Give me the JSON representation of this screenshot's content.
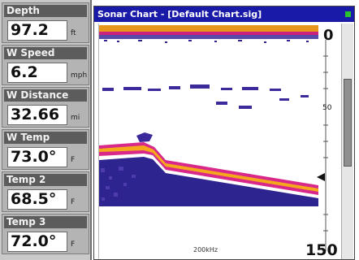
{
  "panel": {
    "boxes": [
      {
        "label": "Depth",
        "value": "97.2",
        "unit": "ft"
      },
      {
        "label": "W Speed",
        "value": "6.2",
        "unit": "mph"
      },
      {
        "label": "W Distance",
        "value": "32.66",
        "unit": "mi"
      },
      {
        "label": "W Temp",
        "value": "73.0°",
        "unit": "F"
      },
      {
        "label": "Temp 2",
        "value": "68.5°",
        "unit": "F"
      },
      {
        "label": "Temp 3",
        "value": "72.0°",
        "unit": "F"
      }
    ]
  },
  "window": {
    "title": "Sonar Chart - [Default Chart.sig]"
  },
  "sonar": {
    "frequency": "200kHz",
    "depth_scale": {
      "top": "0",
      "mid": "50",
      "bottom": "150"
    },
    "current_depth_marker": "97",
    "colors": {
      "bottom_core": "#f5a81c",
      "bottom_edge": "#d8288a",
      "bottom_body": "#2e2490",
      "fish_arch": "#3a2a9a",
      "surface_band": "#e8951c"
    }
  }
}
